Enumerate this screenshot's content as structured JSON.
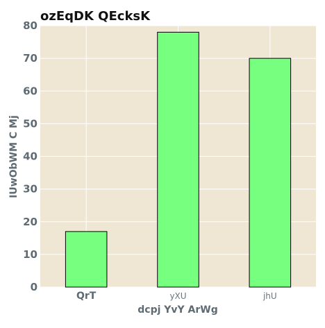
{
  "chart_data": {
    "type": "bar",
    "title": "ozEqDK QEcksK",
    "xlabel": "dcpj YvY ArWg",
    "ylabel": "IUwObWM C  Mj",
    "categories": [
      "QrT",
      "yXU",
      "jhU"
    ],
    "values": [
      17,
      78,
      70
    ],
    "ylim": [
      0,
      80
    ],
    "yticks": [
      0,
      10,
      20,
      30,
      40,
      50,
      60,
      70,
      80
    ],
    "grid": true,
    "colors": {
      "bar_fill": "#77ff80",
      "bar_stroke": "#000000",
      "plot_background": "#efe7d4",
      "grid": "#ffffff"
    }
  }
}
